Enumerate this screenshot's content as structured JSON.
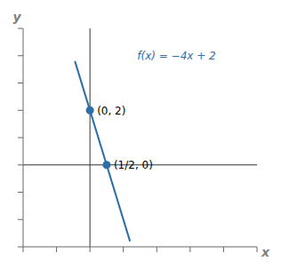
{
  "chart_data": {
    "type": "line",
    "x_label": "x",
    "y_label": "y",
    "series": [
      {
        "type": "line",
        "color": "#2E6EA6",
        "x": [
          -0.45,
          1.2
        ],
        "values": [
          3.8,
          -2.8
        ]
      },
      {
        "type": "scatter",
        "color": "#2E6EA6",
        "x": [
          0,
          0.5
        ],
        "values": [
          2,
          0
        ]
      }
    ],
    "xlim": [
      -2,
      5
    ],
    "xticks": [
      -2,
      -1,
      0,
      1,
      2,
      3,
      4,
      5
    ],
    "ylim": [
      -3,
      5
    ],
    "yticks": [
      -3,
      -2,
      -1,
      0,
      1,
      2,
      3,
      4,
      5
    ],
    "tick_labels": false,
    "grid": false,
    "annotations": [
      {
        "text": "f(x) = −4x + 2",
        "x": 1.2,
        "y": 4.0,
        "color": "#2E6EA6"
      },
      {
        "text": "(0, 2)",
        "x": 0,
        "y": 2
      },
      {
        "text": "(1/2, 0)",
        "x": 0.5,
        "y": 0
      }
    ]
  }
}
